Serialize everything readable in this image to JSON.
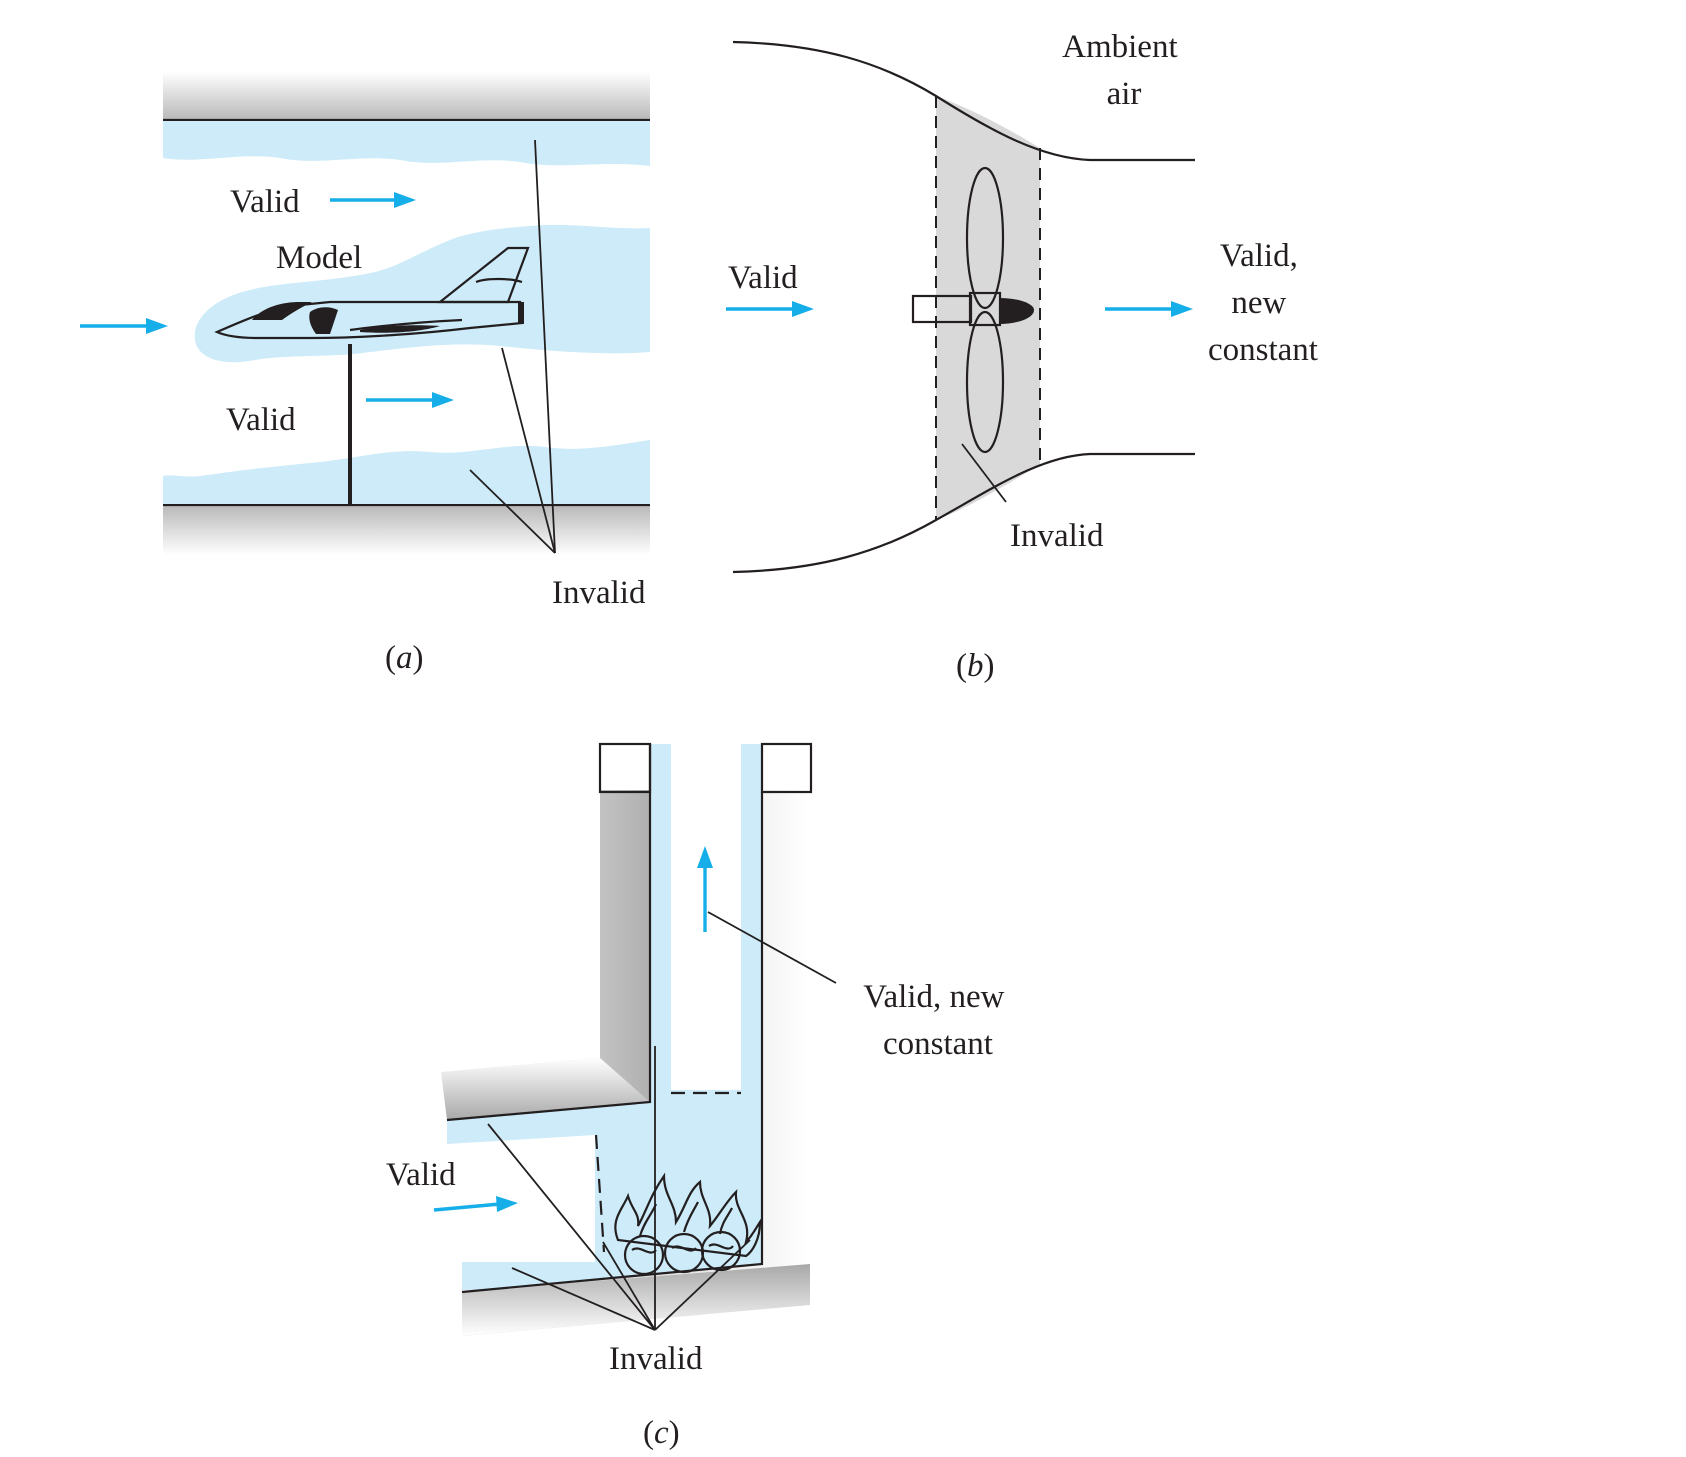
{
  "panel_a": {
    "valid_top": "Valid",
    "model": "Model",
    "valid_bottom": "Valid",
    "invalid": "Invalid",
    "caption_open": "(",
    "caption_letter": "a",
    "caption_close": ")"
  },
  "panel_b": {
    "ambient_line1": "Ambient",
    "ambient_line2": "air",
    "valid_in": "Valid",
    "valid_out_line1": "Valid,",
    "valid_out_line2": "new",
    "valid_out_line3": "constant",
    "invalid": "Invalid",
    "caption_open": "(",
    "caption_letter": "b",
    "caption_close": ")"
  },
  "panel_c": {
    "valid_line1": "Valid, new",
    "valid_line2": "constant",
    "valid_in": "Valid",
    "invalid": "Invalid",
    "caption_open": "(",
    "caption_letter": "c",
    "caption_close": ")"
  },
  "colors": {
    "flow_region": "#cdebf8",
    "flow_arrow": "#16aee8",
    "ink": "#231f20",
    "wall_shade": "#c4c4c4",
    "disk_region": "#d9d9d9"
  }
}
